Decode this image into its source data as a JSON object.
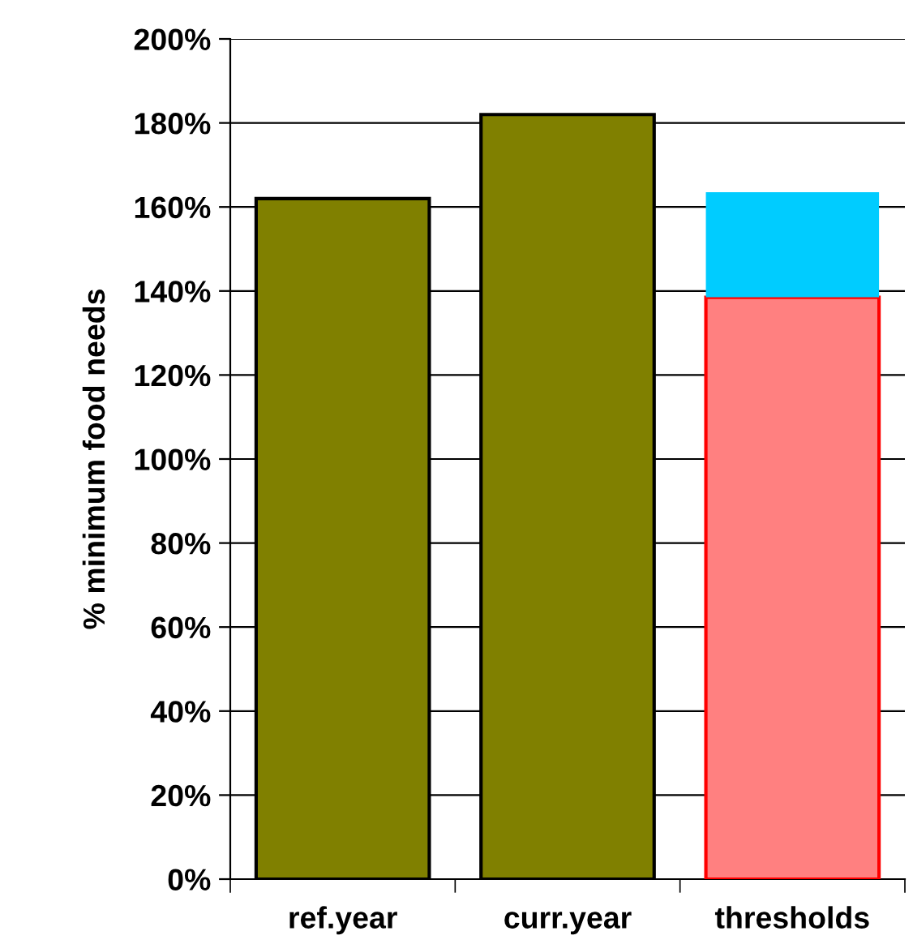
{
  "chart_data": {
    "type": "bar",
    "stacked": true,
    "ylabel": "% minimum food needs",
    "categories": [
      "ref.year",
      "curr.year",
      "thresholds"
    ],
    "series": [
      {
        "colors": [
          "#808000",
          "#808000",
          "#ff8080"
        ],
        "values": [
          162,
          182,
          138.5
        ]
      },
      {
        "color": "#00ccff",
        "values": [
          null,
          null,
          25
        ]
      }
    ],
    "ylim": [
      0,
      200
    ],
    "yticks": [
      {
        "value": 0,
        "label": "0%"
      },
      {
        "value": 20,
        "label": "20%"
      },
      {
        "value": 40,
        "label": "40%"
      },
      {
        "value": 60,
        "label": "60%"
      },
      {
        "value": 80,
        "label": "80%"
      },
      {
        "value": 100,
        "label": "100%"
      },
      {
        "value": 120,
        "label": "120%"
      },
      {
        "value": 140,
        "label": "140%"
      },
      {
        "value": 160,
        "label": "160%"
      },
      {
        "value": 180,
        "label": "180%"
      },
      {
        "value": 200,
        "label": "200%"
      }
    ],
    "grid": "y"
  }
}
